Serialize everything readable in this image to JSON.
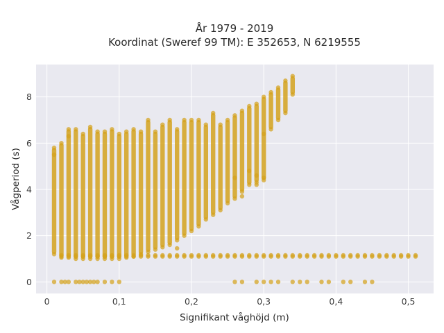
{
  "chart_data": {
    "type": "scatter",
    "title": "År 1979 - 2019",
    "subtitle": "Koordinat (Sweref 99 TM): E 352653, N 6219555",
    "xlabel": "Signifikant våghöjd (m)",
    "ylabel": "Vågperiod (s)",
    "xlim": [
      -0.015,
      0.535
    ],
    "ylim": [
      -0.5,
      9.4
    ],
    "x_ticks": [
      0,
      0.1,
      0.2,
      0.3,
      0.4,
      0.5
    ],
    "x_tick_labels": [
      "0",
      "0,1",
      "0,2",
      "0,3",
      "0,4",
      "0,5"
    ],
    "y_ticks": [
      0,
      2,
      4,
      6,
      8
    ],
    "y_tick_labels": [
      "0",
      "2",
      "4",
      "6",
      "8"
    ],
    "grid": true,
    "colors": {
      "point": "#d4a21d",
      "plot_bg": "#e9e9f0",
      "grid": "#ffffff"
    },
    "series": [
      {
        "columns": [
          {
            "x": 0.01,
            "ymin": 1.2,
            "ymax": 5.8
          },
          {
            "x": 0.02,
            "ymin": 1.05,
            "ymax": 6.0
          },
          {
            "x": 0.03,
            "ymin": 1.05,
            "ymax": 6.6
          },
          {
            "x": 0.04,
            "ymin": 1.0,
            "ymax": 6.6
          },
          {
            "x": 0.05,
            "ymin": 1.0,
            "ymax": 6.4
          },
          {
            "x": 0.06,
            "ymin": 1.0,
            "ymax": 6.7
          },
          {
            "x": 0.07,
            "ymin": 1.0,
            "ymax": 6.5
          },
          {
            "x": 0.08,
            "ymin": 1.0,
            "ymax": 6.5
          },
          {
            "x": 0.09,
            "ymin": 1.0,
            "ymax": 6.6
          },
          {
            "x": 0.1,
            "ymin": 1.0,
            "ymax": 6.4
          },
          {
            "x": 0.11,
            "ymin": 1.05,
            "ymax": 6.5
          },
          {
            "x": 0.12,
            "ymin": 1.1,
            "ymax": 6.6
          },
          {
            "x": 0.13,
            "ymin": 1.2,
            "ymax": 6.5
          },
          {
            "x": 0.14,
            "ymin": 1.3,
            "ymax": 7.0
          },
          {
            "x": 0.15,
            "ymin": 1.4,
            "ymax": 6.5
          },
          {
            "x": 0.16,
            "ymin": 1.5,
            "ymax": 6.8
          },
          {
            "x": 0.17,
            "ymin": 1.6,
            "ymax": 7.0
          },
          {
            "x": 0.18,
            "ymin": 1.8,
            "ymax": 6.6
          },
          {
            "x": 0.19,
            "ymin": 2.0,
            "ymax": 7.0
          },
          {
            "x": 0.2,
            "ymin": 2.2,
            "ymax": 7.0
          },
          {
            "x": 0.21,
            "ymin": 2.4,
            "ymax": 7.0
          },
          {
            "x": 0.22,
            "ymin": 2.7,
            "ymax": 6.8
          },
          {
            "x": 0.23,
            "ymin": 2.9,
            "ymax": 7.3
          },
          {
            "x": 0.24,
            "ymin": 3.1,
            "ymax": 6.8
          },
          {
            "x": 0.25,
            "ymin": 3.4,
            "ymax": 7.0
          },
          {
            "x": 0.26,
            "ymin": 3.6,
            "ymax": 7.2
          },
          {
            "x": 0.27,
            "ymin": 3.9,
            "ymax": 7.4
          },
          {
            "x": 0.28,
            "ymin": 4.2,
            "ymax": 7.6
          },
          {
            "x": 0.29,
            "ymin": 4.3,
            "ymax": 7.7
          },
          {
            "x": 0.3,
            "ymin": 4.4,
            "ymax": 8.0
          },
          {
            "x": 0.31,
            "ymin": 6.6,
            "ymax": 8.2
          },
          {
            "x": 0.32,
            "ymin": 7.0,
            "ymax": 8.4
          },
          {
            "x": 0.33,
            "ymin": 7.3,
            "ymax": 8.7
          },
          {
            "x": 0.34,
            "ymin": 8.1,
            "ymax": 8.9
          }
        ],
        "points": [
          {
            "x": 0.29,
            "y": 4.6
          },
          {
            "x": 0.29,
            "y": 4.2
          },
          {
            "x": 0.3,
            "y": 4.5
          },
          {
            "x": 0.3,
            "y": 6.4
          },
          {
            "x": 0.28,
            "y": 4.8
          },
          {
            "x": 0.27,
            "y": 3.7
          },
          {
            "x": 0.26,
            "y": 4.5
          },
          {
            "x": 0.18,
            "y": 1.45
          },
          {
            "x": 0.01,
            "y": 5.5
          },
          {
            "x": 0.03,
            "y": 6.3
          }
        ],
        "base_band": {
          "y": 1.1,
          "x": [
            0.02,
            0.03,
            0.04,
            0.05,
            0.06,
            0.07,
            0.08,
            0.09,
            0.1,
            0.11,
            0.12,
            0.13,
            0.14,
            0.15,
            0.16,
            0.17,
            0.18,
            0.19,
            0.2,
            0.21,
            0.22,
            0.23,
            0.24,
            0.25,
            0.26,
            0.27,
            0.28,
            0.29,
            0.3,
            0.31,
            0.32,
            0.33,
            0.34,
            0.35,
            0.36,
            0.37,
            0.38,
            0.39,
            0.4,
            0.41,
            0.42,
            0.43,
            0.44,
            0.45,
            0.46,
            0.47,
            0.48,
            0.49,
            0.5,
            0.51
          ]
        },
        "zero_row": {
          "y": 0,
          "x": [
            0.01,
            0.02,
            0.025,
            0.03,
            0.04,
            0.045,
            0.05,
            0.055,
            0.06,
            0.065,
            0.07,
            0.08,
            0.09,
            0.1,
            0.26,
            0.27,
            0.29,
            0.3,
            0.31,
            0.32,
            0.34,
            0.35,
            0.36,
            0.38,
            0.39,
            0.41,
            0.42,
            0.44,
            0.45
          ]
        }
      }
    ]
  }
}
